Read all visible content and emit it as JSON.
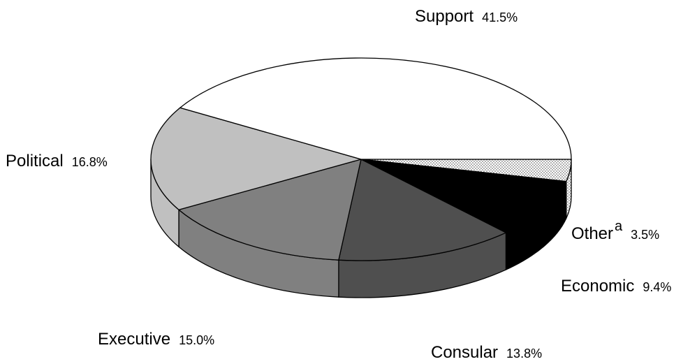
{
  "chart_data": {
    "type": "pie",
    "style": "3d-exploded-free",
    "start_angle_deg": 0,
    "direction": "clockwise-on-screen",
    "slices": [
      {
        "name": "Other",
        "note": "a",
        "percent_label": "3.5%",
        "value": 3.5,
        "color": "#e8e8e8",
        "pattern": "dots"
      },
      {
        "name": "Economic",
        "percent_label": "9.4%",
        "value": 9.4,
        "color": "#000000"
      },
      {
        "name": "Consular",
        "percent_label": "13.8%",
        "value": 13.8,
        "color": "#4f4f4f"
      },
      {
        "name": "Executive",
        "percent_label": "15.0%",
        "value": 15.0,
        "color": "#808080"
      },
      {
        "name": "Political",
        "percent_label": "16.8%",
        "value": 16.8,
        "color": "#c0c0c0"
      },
      {
        "name": "Support",
        "percent_label": "41.5%",
        "value": 41.5,
        "color": "#ffffff"
      }
    ]
  }
}
